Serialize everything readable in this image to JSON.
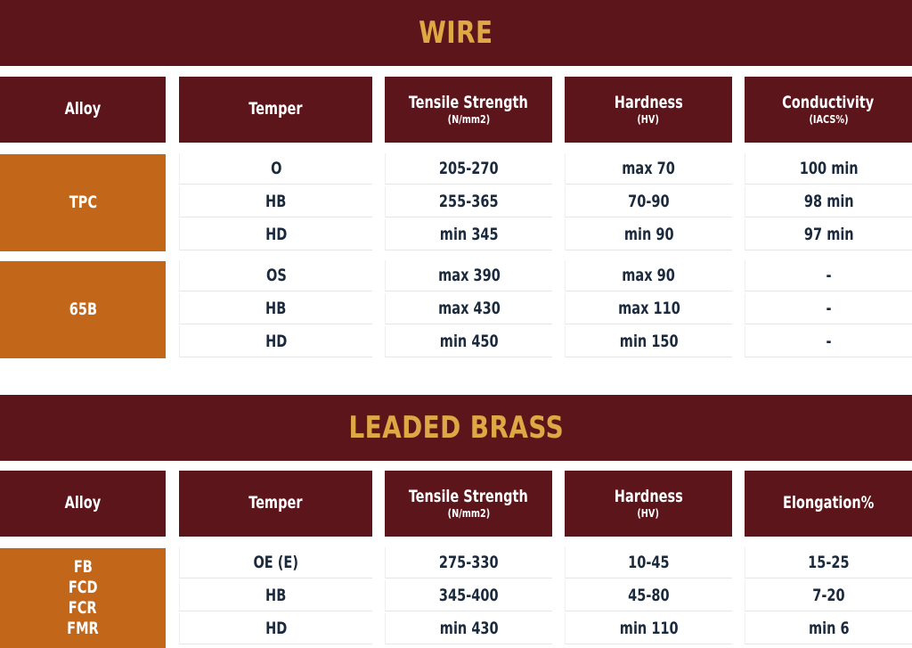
{
  "wire": {
    "title": "WIRE",
    "headers": [
      {
        "main": "Alloy",
        "sub": ""
      },
      {
        "main": "Temper",
        "sub": ""
      },
      {
        "main": "Tensile Strength",
        "sub": "(N/mm2)"
      },
      {
        "main": "Hardness",
        "sub": "(HV)"
      },
      {
        "main": "Conductivity",
        "sub": "(IACS%)"
      }
    ],
    "groups": [
      {
        "alloy": [
          "TPC"
        ],
        "rows": [
          [
            "O",
            "205-270",
            "max 70",
            "100 min"
          ],
          [
            "HB",
            "255-365",
            "70-90",
            "98 min"
          ],
          [
            "HD",
            "min 345",
            "min 90",
            "97 min"
          ]
        ]
      },
      {
        "alloy": [
          "65B"
        ],
        "rows": [
          [
            "OS",
            "max 390",
            "max 90",
            "-"
          ],
          [
            "HB",
            "max 430",
            "max 110",
            "-"
          ],
          [
            "HD",
            "min 450",
            "min 150",
            "-"
          ]
        ]
      }
    ]
  },
  "leaded_brass": {
    "title": "LEADED BRASS",
    "headers": [
      {
        "main": "Alloy",
        "sub": ""
      },
      {
        "main": "Temper",
        "sub": ""
      },
      {
        "main": "Tensile Strength",
        "sub": "(N/mm2)"
      },
      {
        "main": "Hardness",
        "sub": "(HV)"
      },
      {
        "main": "Elongation%",
        "sub": ""
      }
    ],
    "groups": [
      {
        "alloy": [
          "FB",
          "FCD",
          "FCR",
          "FMR"
        ],
        "rows": [
          [
            "OE (E)",
            "275-330",
            "10-45",
            "15-25"
          ],
          [
            "HB",
            "345-400",
            "45-80",
            "7-20"
          ],
          [
            "HD",
            "min 430",
            "min 110",
            "min 6"
          ]
        ]
      }
    ]
  },
  "colors": {
    "banner_bg": "#5c151b",
    "banner_text": "#e0a845",
    "alloy_bg": "#c2661a",
    "cell_text": "#1b2a3d"
  }
}
